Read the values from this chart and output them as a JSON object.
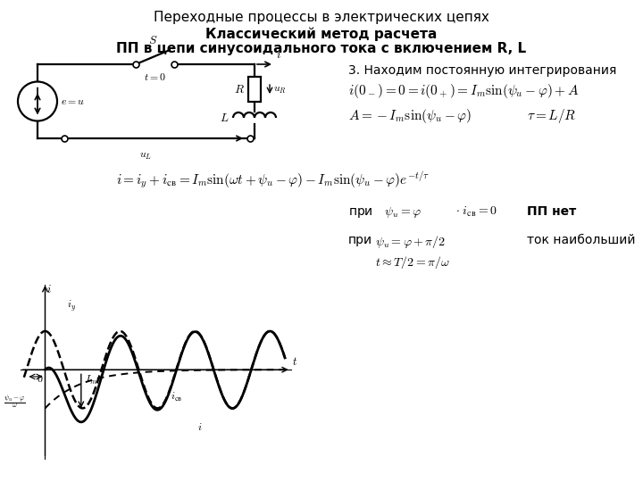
{
  "title": "Переходные процессы в электрических цепях",
  "subtitle1": "Классический метод расчета",
  "subtitle2": "ПП в цепи синусоидального тока с включением R, L",
  "step3_label": "3. Находим постоянную интегрирования",
  "background_color": "#ffffff",
  "fig_w": 7.2,
  "fig_h": 5.4,
  "dpi": 100
}
